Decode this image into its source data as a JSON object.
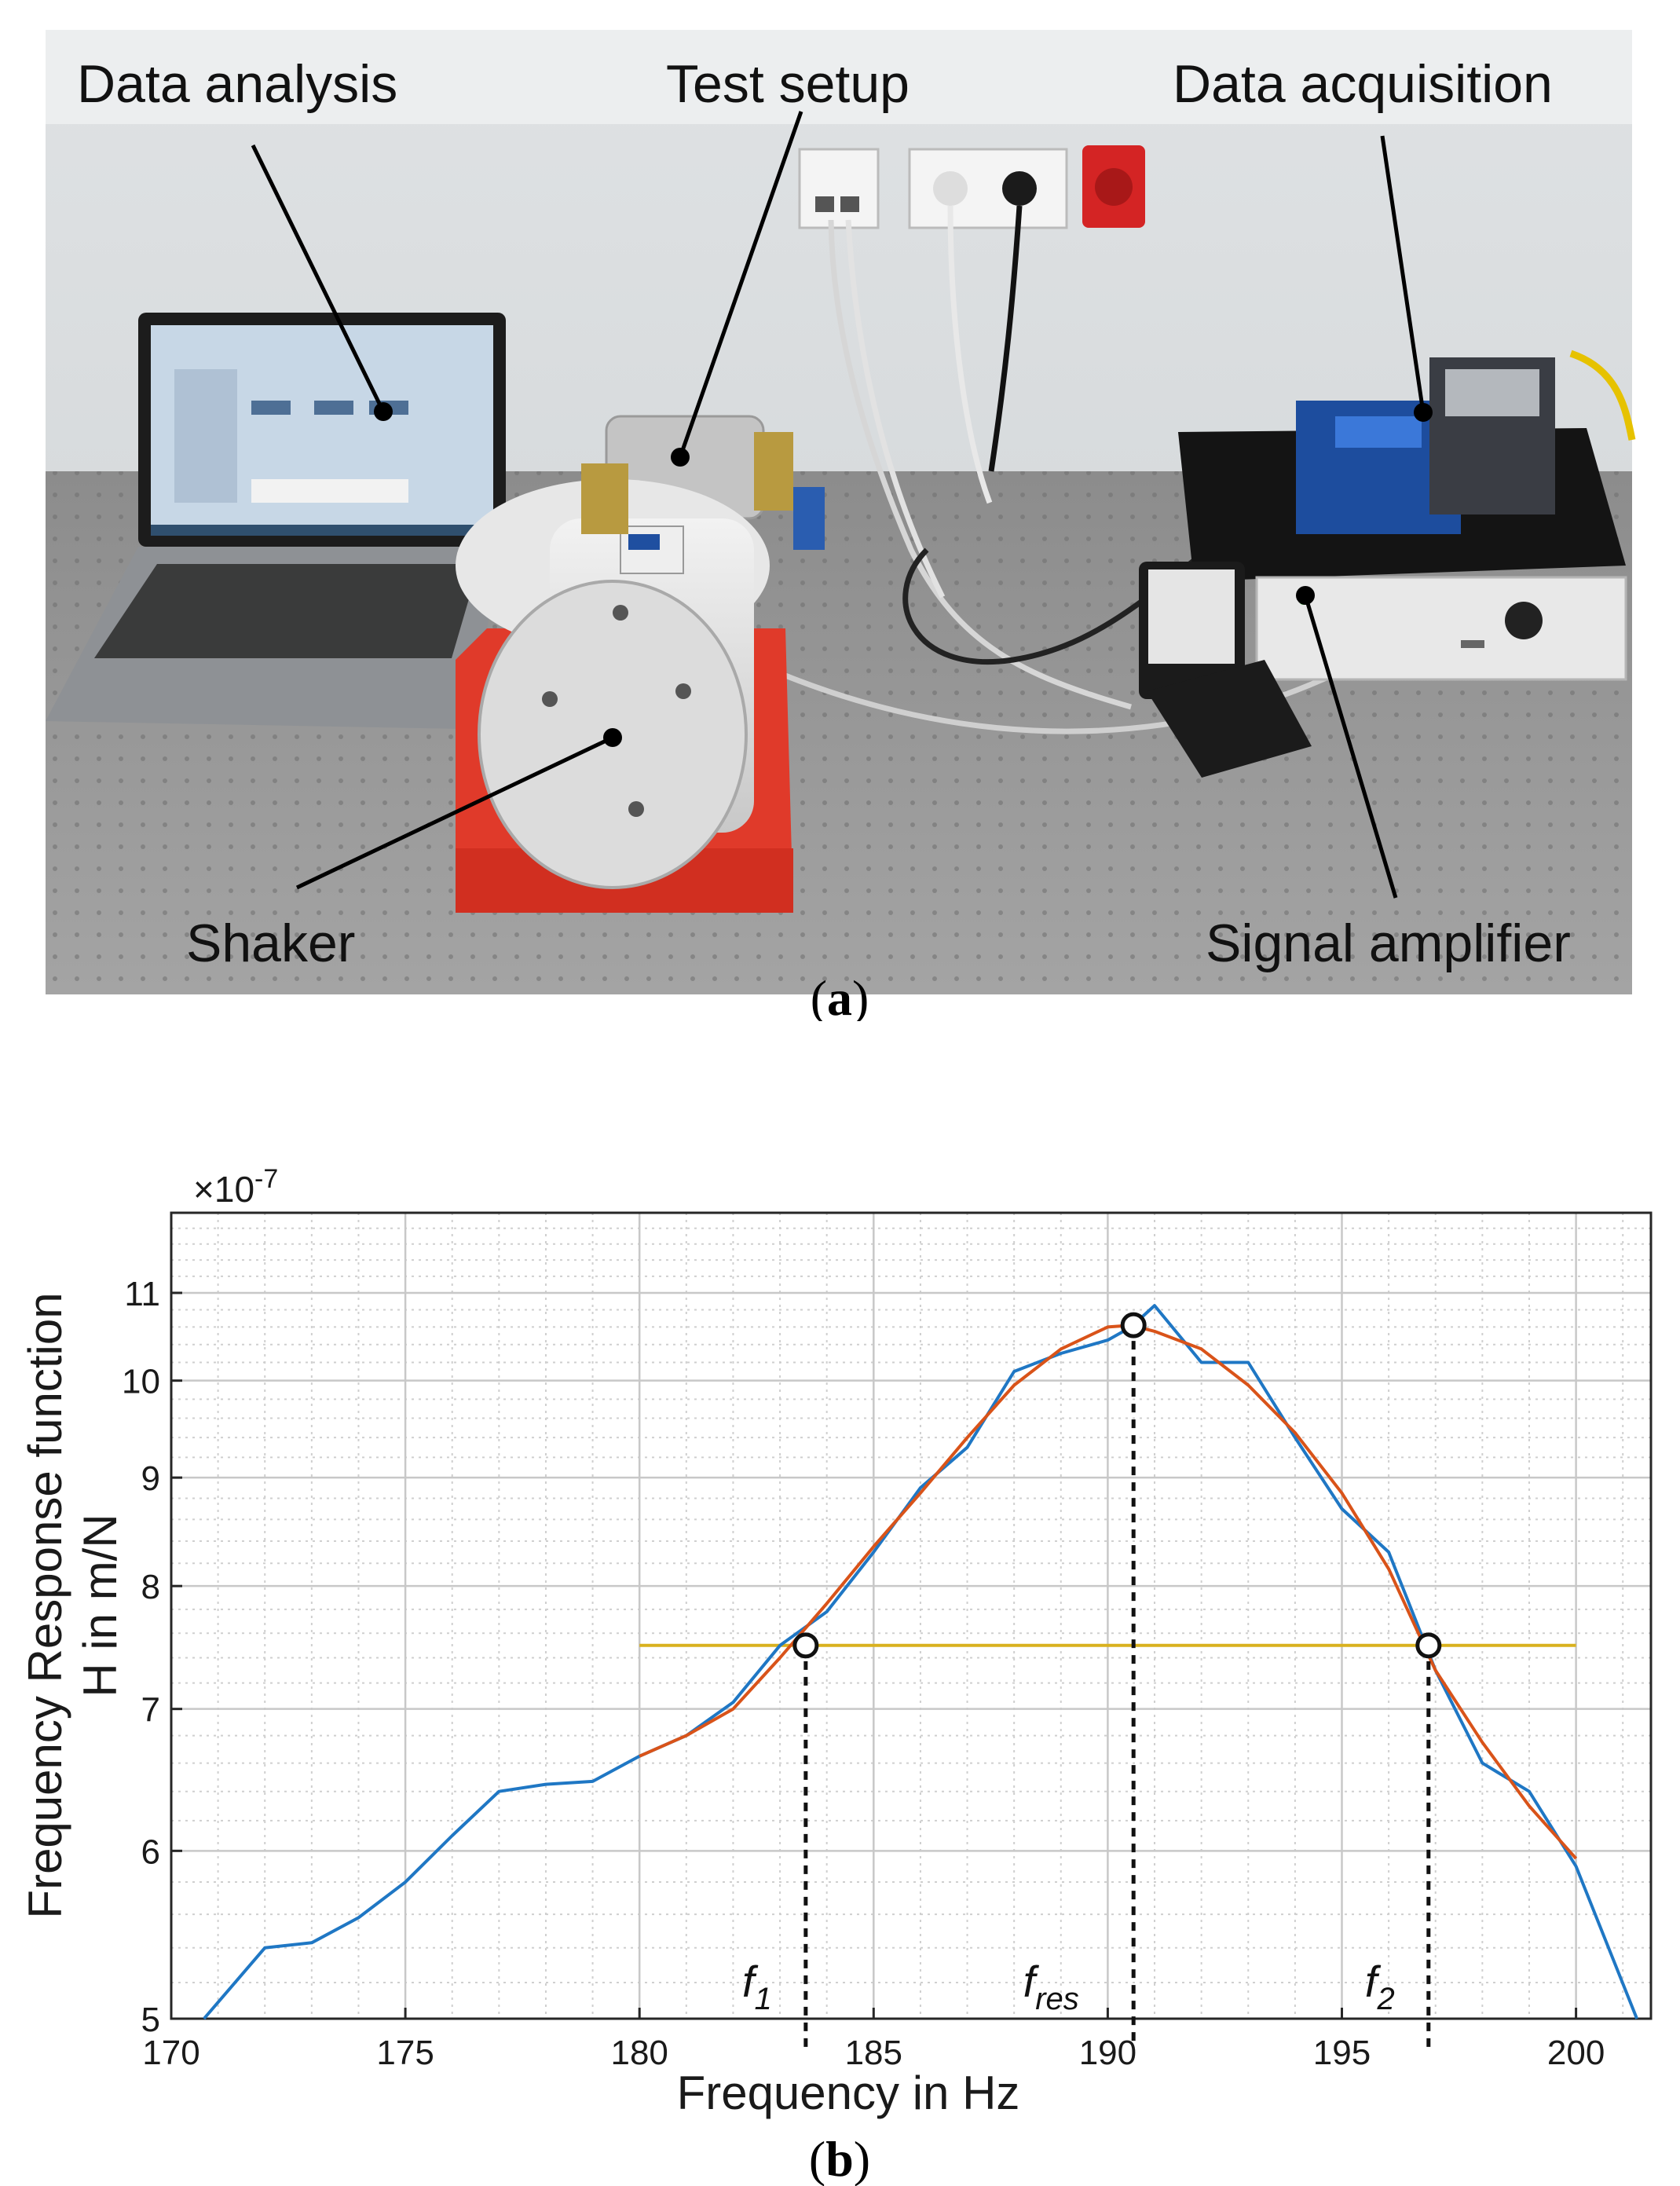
{
  "photo": {
    "labels": {
      "data_analysis": "Data analysis",
      "test_setup": "Test setup",
      "data_acquisition": "Data acquisition",
      "shaker": "Shaker",
      "signal_amplifier": "Signal amplifier"
    },
    "caption": {
      "open": "(",
      "letter": "a",
      "close": ")"
    }
  },
  "chart": {
    "caption": {
      "open": "(",
      "letter": "b",
      "close": ")"
    },
    "exponent_text": "×10",
    "exponent_power": "-7",
    "colors": {
      "measured": "#1f77c4",
      "fit": "#d95319",
      "half_power": "#d9b11e"
    },
    "markers": [
      {
        "symbol": "f",
        "sub": "1",
        "x": 183.55,
        "y": 7.5
      },
      {
        "symbol": "f",
        "sub": "res",
        "x": 190.55,
        "y": 10.62
      },
      {
        "symbol": "f",
        "sub": "2",
        "x": 196.85,
        "y": 7.5
      }
    ]
  },
  "chart_data": {
    "type": "line",
    "xlabel": "Frequency in Hz",
    "ylabel_line1": "Frequency Response function",
    "ylabel_line2": "H in m/N",
    "xlim": [
      170,
      201.6
    ],
    "ylim": [
      5,
      12
    ],
    "y_scale": "log",
    "y_multiplier": "1e-7",
    "x_ticks": [
      170,
      175,
      180,
      185,
      190,
      195,
      200
    ],
    "y_ticks": [
      5,
      6,
      7,
      8,
      9,
      10,
      11
    ],
    "grid": true,
    "series": [
      {
        "x": [
          170.7,
          172,
          173,
          174,
          175,
          176,
          177,
          178,
          179,
          180,
          181,
          182,
          183,
          184,
          185,
          186,
          187,
          188,
          189,
          190,
          190.5,
          191,
          192,
          193,
          194,
          195,
          196,
          197,
          198,
          199,
          200,
          201.3
        ],
        "values": [
          5.0,
          5.4,
          5.43,
          5.58,
          5.8,
          6.1,
          6.4,
          6.45,
          6.47,
          6.65,
          6.8,
          7.05,
          7.5,
          7.78,
          8.3,
          8.9,
          9.3,
          10.1,
          10.3,
          10.45,
          10.6,
          10.85,
          10.2,
          10.2,
          9.4,
          8.7,
          8.3,
          7.3,
          6.6,
          6.4,
          5.9,
          5.0
        ]
      },
      {
        "x": [
          180,
          181,
          182,
          183,
          184,
          185,
          186,
          187,
          188,
          189,
          190,
          190.5,
          191,
          192,
          193,
          194,
          195,
          196,
          197,
          198,
          199,
          200
        ],
        "values": [
          6.65,
          6.8,
          7.0,
          7.4,
          7.85,
          8.35,
          8.85,
          9.4,
          9.95,
          10.35,
          10.6,
          10.62,
          10.55,
          10.35,
          9.95,
          9.45,
          8.85,
          8.15,
          7.3,
          6.75,
          6.3,
          5.95
        ]
      },
      {
        "x": [
          180,
          200
        ],
        "values": [
          7.5,
          7.5
        ]
      }
    ]
  }
}
